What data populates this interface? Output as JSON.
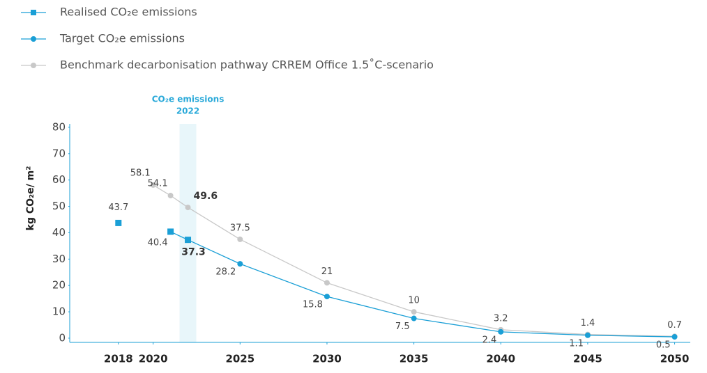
{
  "chart_data": {
    "type": "line",
    "ylabel": "kg CO₂e/ m²",
    "highlight": {
      "x": 2022,
      "label": [
        "CO₂e emissions",
        "2022"
      ]
    },
    "xlim": [
      2015.2,
      2050.9
    ],
    "xticks": [
      2018,
      2020,
      2025,
      2030,
      2035,
      2040,
      2045,
      2050
    ],
    "ylim": [
      -1.6,
      81.3
    ],
    "yticks": [
      0,
      10,
      20,
      30,
      40,
      50,
      60,
      70,
      80
    ],
    "series": [
      {
        "name": "Realised CO₂e emissions",
        "color": "#1a9fd6",
        "marker": "square",
        "x": [
          2018,
          2020,
          2021,
          2022
        ],
        "values": [
          43.7,
          null,
          40.4,
          37.3
        ]
      },
      {
        "name": "Target CO₂e emissions",
        "color": "#1a9fd6",
        "marker": "circle",
        "x": [
          2022,
          2025,
          2030,
          2035,
          2040,
          2045,
          2050
        ],
        "values": [
          37.3,
          28.2,
          15.8,
          7.5,
          2.4,
          1.1,
          0.5
        ],
        "value_labels": [
          null,
          "28.2",
          "15.8",
          "7.5",
          "2.4",
          "1.1",
          "0.5"
        ]
      },
      {
        "name": "Benchmark decarbonisation pathway CRREM Office 1.5˚C-scenario",
        "color": "#c8c8c8",
        "marker": "circle",
        "x": [
          2020,
          2021,
          2022,
          2025,
          2030,
          2035,
          2040,
          2045,
          2050
        ],
        "values": [
          58.1,
          54.1,
          49.6,
          37.5,
          21,
          10,
          3.2,
          1.4,
          0.7
        ]
      }
    ]
  }
}
